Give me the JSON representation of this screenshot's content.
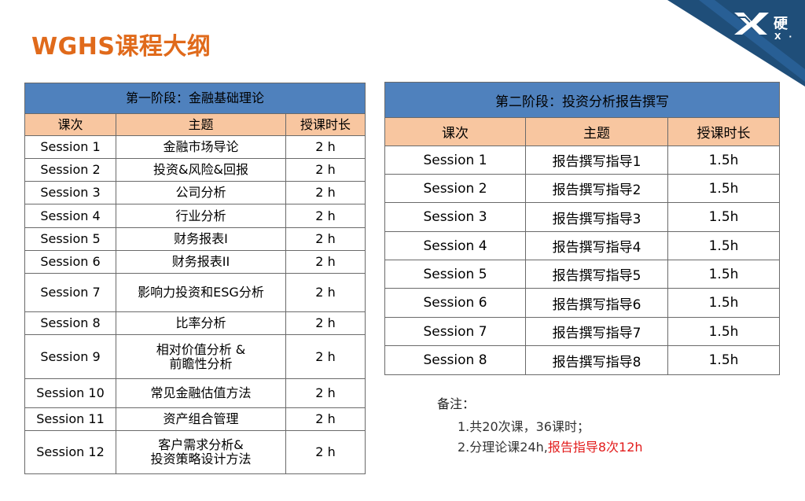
{
  "title": "WGHS课程大纲",
  "brand": {
    "logo_text_top": "硬",
    "logo_text_bottom": "X ·",
    "corner_color": "#1f4e79"
  },
  "colors": {
    "title": "#e06a1b",
    "stage_header": "#4f81bd",
    "column_header": "#f8c6a0",
    "highlight": "#e21b1b"
  },
  "stage1": {
    "title": "第一阶段：金融基础理论",
    "headers": [
      "课次",
      "主题",
      "授课时长"
    ],
    "rows": [
      [
        "Session 1",
        "金融市场导论",
        "2 h"
      ],
      [
        "Session 2",
        "投资&风险&回报",
        "2 h"
      ],
      [
        "Session 3",
        "公司分析",
        "2 h"
      ],
      [
        "Session 4",
        "行业分析",
        "2 h"
      ],
      [
        "Session 5",
        "财务报表I",
        "2 h"
      ],
      [
        "Session 6",
        "财务报表II",
        "2 h"
      ],
      [
        "Session 7",
        "影响力投资和ESG分析",
        "2 h"
      ],
      [
        "Session 8",
        "比率分析",
        "2 h"
      ],
      [
        "Session 9",
        "相对价值分析 &\n前瞻性分析",
        "2 h"
      ],
      [
        "Session 10",
        "常见金融估值方法",
        "2 h"
      ],
      [
        "Session 11",
        "资产组合管理",
        "2 h"
      ],
      [
        "Session 12",
        "客户需求分析&\n投资策略设计方法",
        "2 h"
      ]
    ]
  },
  "stage2": {
    "title": "第二阶段：投资分析报告撰写",
    "headers": [
      "课次",
      "主题",
      "授课时长"
    ],
    "rows": [
      [
        "Session 1",
        "报告撰写指导1",
        "1.5h"
      ],
      [
        "Session 2",
        "报告撰写指导2",
        "1.5h"
      ],
      [
        "Session 3",
        "报告撰写指导3",
        "1.5h"
      ],
      [
        "Session 4",
        "报告撰写指导4",
        "1.5h"
      ],
      [
        "Session 5",
        "报告撰写指导5",
        "1.5h"
      ],
      [
        "Session 6",
        "报告撰写指导6",
        "1.5h"
      ],
      [
        "Session 7",
        "报告撰写指导7",
        "1.5h"
      ],
      [
        "Session 8",
        "报告撰写指导8",
        "1.5h"
      ]
    ]
  },
  "notes": {
    "label": "备注：",
    "line1": "1.共20次课，36课时；",
    "line2_prefix": "2.分理论课24h,",
    "line2_highlight": "报告指导8次12h"
  }
}
